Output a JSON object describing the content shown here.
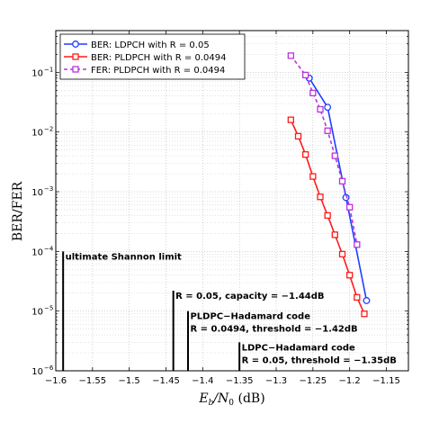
{
  "chart_data": {
    "type": "line",
    "xlabel": "E_b/N_0 (dB)",
    "xlabel_parts": {
      "main": "E",
      "sub1": "b",
      "mid": "/N",
      "sub2": "0",
      "unit": " (dB)"
    },
    "ylabel": "BER/FER",
    "xlim": [
      -1.6,
      -1.12
    ],
    "ylim": [
      1e-06,
      0.5
    ],
    "yscale": "log",
    "grid": true,
    "legend_position": "top-left",
    "xticks": [
      {
        "value": -1.6,
        "label": "−1.6"
      },
      {
        "value": -1.55,
        "label": "−1.55"
      },
      {
        "value": -1.5,
        "label": "−1.5"
      },
      {
        "value": -1.45,
        "label": "−1.45"
      },
      {
        "value": -1.4,
        "label": "−1.4"
      },
      {
        "value": -1.35,
        "label": "−1.35"
      },
      {
        "value": -1.3,
        "label": "−1.3"
      },
      {
        "value": -1.25,
        "label": "−1.25"
      },
      {
        "value": -1.2,
        "label": "−1.2"
      },
      {
        "value": -1.15,
        "label": "−1.15"
      }
    ],
    "yticks": [
      {
        "value": 1e-06,
        "base": "10",
        "exp": "−6"
      },
      {
        "value": 1e-05,
        "base": "10",
        "exp": "−5"
      },
      {
        "value": 0.0001,
        "base": "10",
        "exp": "−4"
      },
      {
        "value": 0.001,
        "base": "10",
        "exp": "−3"
      },
      {
        "value": 0.01,
        "base": "10",
        "exp": "−2"
      },
      {
        "value": 0.1,
        "base": "10",
        "exp": "−1"
      }
    ],
    "series": [
      {
        "name": "BER: LDPCH with R = 0.05",
        "color": "#1f3fff",
        "marker": "circle",
        "dashed": false,
        "x": [
          -1.255,
          -1.23,
          -1.205,
          -1.177
        ],
        "y": [
          0.08,
          0.026,
          0.0008,
          1.5e-05
        ]
      },
      {
        "name": "BER: PLDPCH with R = 0.0494",
        "color": "#ff1a1a",
        "marker": "square",
        "dashed": false,
        "x": [
          -1.28,
          -1.27,
          -1.26,
          -1.25,
          -1.24,
          -1.23,
          -1.22,
          -1.21,
          -1.2,
          -1.19,
          -1.18
        ],
        "y": [
          0.016,
          0.0085,
          0.0042,
          0.0018,
          0.00082,
          0.0004,
          0.00019,
          9e-05,
          4e-05,
          1.7e-05,
          9e-06
        ]
      },
      {
        "name": "FER: PLDPCH with R = 0.0494",
        "color": "#bb33dd",
        "marker": "square",
        "dashed": true,
        "x": [
          -1.28,
          -1.26,
          -1.25,
          -1.24,
          -1.23,
          -1.22,
          -1.21,
          -1.2,
          -1.19
        ],
        "y": [
          0.19,
          0.09,
          0.045,
          0.024,
          0.0105,
          0.004,
          0.0015,
          0.00055,
          0.00013
        ]
      }
    ],
    "limit_lines": [
      {
        "x": -1.59,
        "top": 0.0001,
        "lines": [
          "ultimate Shannon limit"
        ],
        "label_x": -1.587
      },
      {
        "x": -1.44,
        "top": 2.2e-05,
        "lines": [
          "R = 0.05, capacity = −1.44dB"
        ],
        "label_x": -1.437
      },
      {
        "x": -1.42,
        "top": 1e-05,
        "lines": [
          "PLDPC−Hadamard code",
          "R = 0.0494, threshold = −1.42dB"
        ],
        "label_x": -1.417
      },
      {
        "x": -1.35,
        "top": 3e-06,
        "lines": [
          "LDPC−Hadamard code",
          "R = 0.05, threshold = −1.35dB"
        ],
        "label_x": -1.347
      }
    ]
  }
}
